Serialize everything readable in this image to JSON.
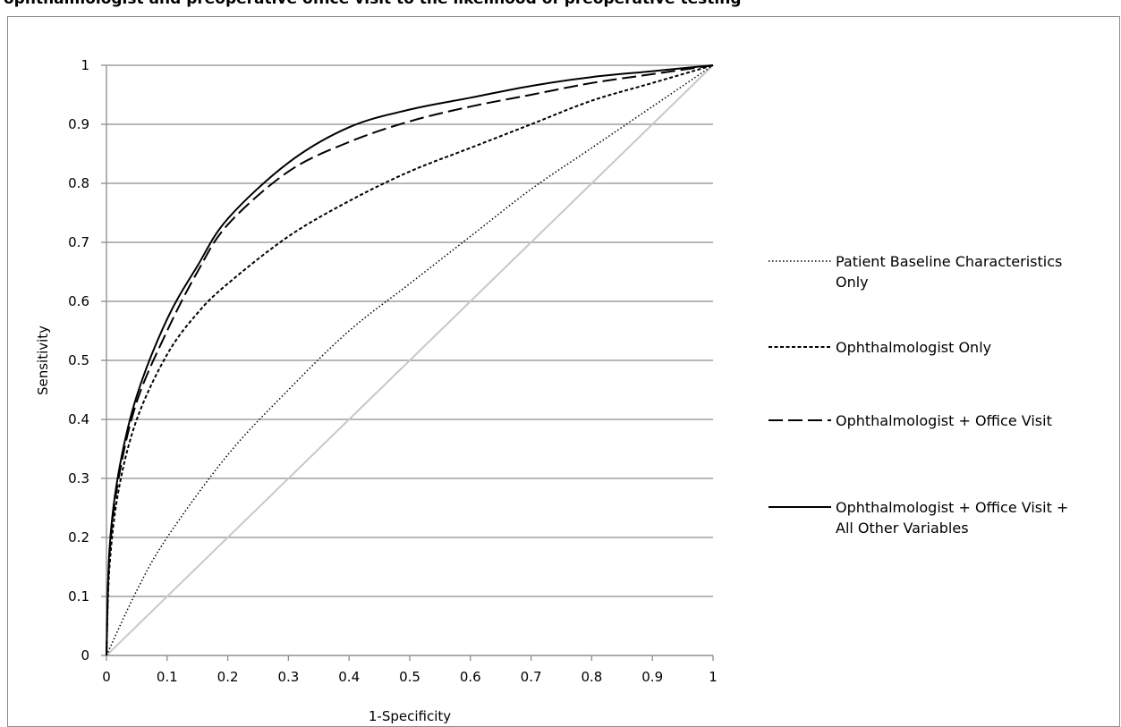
{
  "header": {
    "title_fragment": "ophthalmologist and preoperative office visit to the likelihood of preoperative testing"
  },
  "chart_data": {
    "type": "line",
    "xlabel": "1-Specificity",
    "ylabel": "Sensitivity",
    "xlim": [
      0,
      1
    ],
    "ylim": [
      0,
      1
    ],
    "xticks": [
      "0",
      "0.1",
      "0.2",
      "0.3",
      "0.4",
      "0.5",
      "0.6",
      "0.7",
      "0.8",
      "0.9",
      "1"
    ],
    "yticks": [
      "0",
      "0.1",
      "0.2",
      "0.3",
      "0.4",
      "0.5",
      "0.6",
      "0.7",
      "0.8",
      "0.9",
      "1"
    ],
    "grid": "horizontal",
    "legend_position": "right",
    "reference_line": {
      "color": "#c8c8c8",
      "x": [
        0,
        1
      ],
      "y": [
        0,
        1
      ]
    },
    "series": [
      {
        "name": "Patient Baseline Characteristics Only",
        "legend_lines": [
          "Patient Baseline Characteristics",
          "Only"
        ],
        "style": "dotted",
        "color": "#000000",
        "x": [
          0,
          0.05,
          0.1,
          0.2,
          0.3,
          0.4,
          0.5,
          0.6,
          0.7,
          0.8,
          0.9,
          1
        ],
        "y": [
          0,
          0.11,
          0.2,
          0.34,
          0.45,
          0.55,
          0.63,
          0.71,
          0.79,
          0.86,
          0.93,
          1
        ]
      },
      {
        "name": "Ophthalmologist Only",
        "legend_lines": [
          "Ophthalmologist Only"
        ],
        "style": "short-dash",
        "color": "#000000",
        "x": [
          0,
          0.005,
          0.02,
          0.05,
          0.1,
          0.15,
          0.2,
          0.3,
          0.4,
          0.5,
          0.6,
          0.7,
          0.8,
          0.9,
          1
        ],
        "y": [
          0,
          0.15,
          0.28,
          0.4,
          0.51,
          0.58,
          0.63,
          0.71,
          0.77,
          0.82,
          0.86,
          0.9,
          0.94,
          0.97,
          1
        ]
      },
      {
        "name": "Ophthalmologist + Office Visit",
        "legend_lines": [
          "Ophthalmologist + Office Visit"
        ],
        "style": "long-dash",
        "color": "#000000",
        "x": [
          0,
          0.005,
          0.02,
          0.05,
          0.1,
          0.15,
          0.2,
          0.3,
          0.4,
          0.5,
          0.6,
          0.7,
          0.8,
          0.9,
          1
        ],
        "y": [
          0,
          0.17,
          0.3,
          0.43,
          0.55,
          0.65,
          0.73,
          0.82,
          0.87,
          0.905,
          0.93,
          0.95,
          0.97,
          0.985,
          1
        ]
      },
      {
        "name": "Ophthalmologist + Office Visit + All Other Variables",
        "legend_lines": [
          "Ophthalmologist + Office Visit +",
          "All Other Variables"
        ],
        "style": "solid",
        "color": "#000000",
        "x": [
          0,
          0.005,
          0.02,
          0.05,
          0.1,
          0.15,
          0.2,
          0.3,
          0.4,
          0.5,
          0.6,
          0.7,
          0.8,
          0.9,
          1
        ],
        "y": [
          0,
          0.18,
          0.31,
          0.44,
          0.57,
          0.66,
          0.74,
          0.835,
          0.895,
          0.925,
          0.945,
          0.965,
          0.98,
          0.99,
          1
        ]
      }
    ]
  }
}
